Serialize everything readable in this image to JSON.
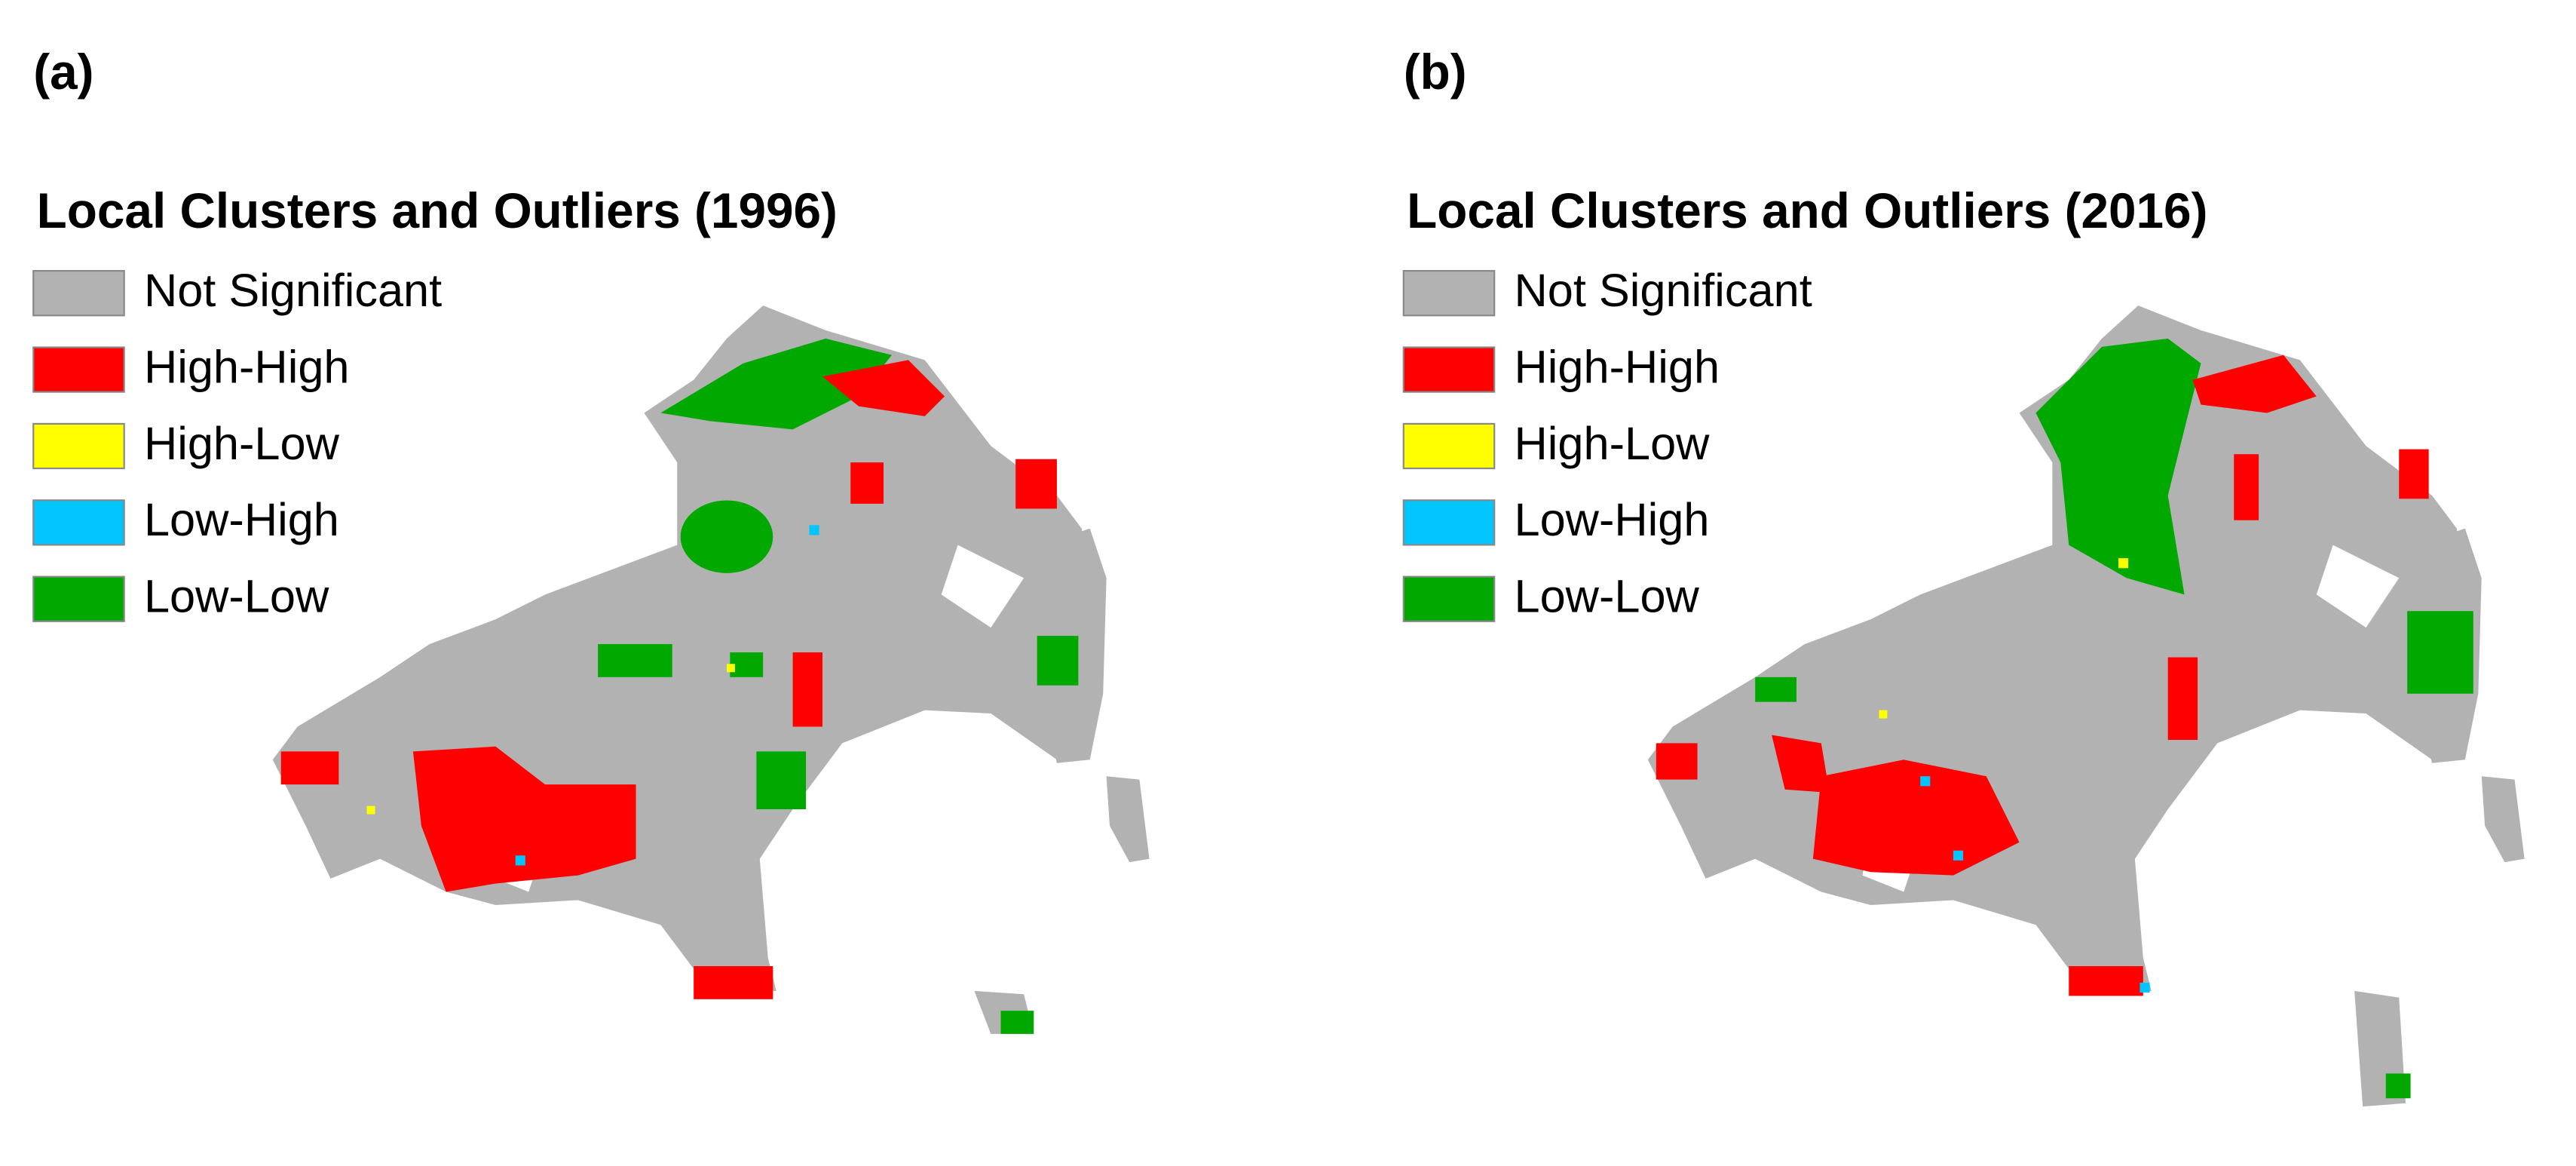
{
  "panels": [
    {
      "label": "(a)",
      "title": "Local Clusters and Outliers (1996)",
      "legend": [
        {
          "label": "Not Significant",
          "color": "#b2b2b2"
        },
        {
          "label": "High-High",
          "color": "#ff0000"
        },
        {
          "label": "High-Low",
          "color": "#ffff00"
        },
        {
          "label": "Low-High",
          "color": "#00c5ff"
        },
        {
          "label": "Low-Low",
          "color": "#00a800"
        }
      ]
    },
    {
      "label": "(b)",
      "title": "Local Clusters and Outliers (2016)",
      "legend": [
        {
          "label": "Not Significant",
          "color": "#b2b2b2"
        },
        {
          "label": "High-High",
          "color": "#ff0000"
        },
        {
          "label": "High-Low",
          "color": "#ffff00"
        },
        {
          "label": "Low-High",
          "color": "#00c5ff"
        },
        {
          "label": "Low-Low",
          "color": "#00a800"
        }
      ]
    }
  ]
}
